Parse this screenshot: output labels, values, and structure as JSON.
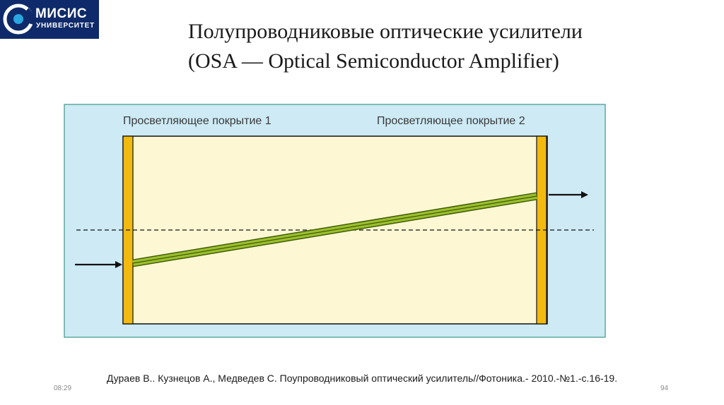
{
  "logo": {
    "name": "МИСИС",
    "subtitle": "УНИВЕРСИТЕТ"
  },
  "title": {
    "line1": "Полупроводниковые оптические усилители",
    "line2": "(OSA — Optical Semiconductor Amplifier)"
  },
  "diagram": {
    "coating_left_label": "Просветляющее покрытие 1",
    "coating_right_label": "Просветляющее покрытие 2"
  },
  "footer": {
    "caption": "Дураев В.. Кузнецов А., Медведев С. Поупроводниковый оптический усилитель//Фотоника.- 2010.-№1.-с.16-19.",
    "time": "08:29",
    "page_number": "94"
  },
  "colors": {
    "background_panel": "#cdeaf5",
    "chip_body": "#fdf7d3",
    "coating": "#f2b90f",
    "waveguide": "#7a9b1e"
  }
}
